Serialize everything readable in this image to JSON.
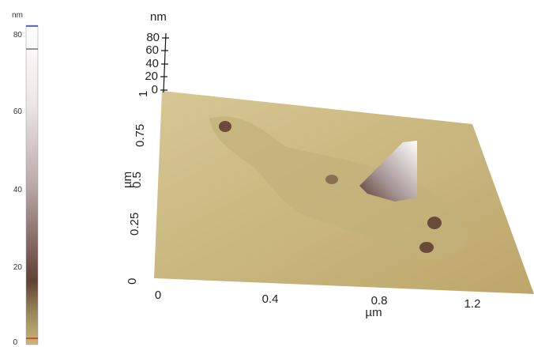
{
  "colorbar": {
    "unit": "nm",
    "ticks": [
      "80",
      "60",
      "40",
      "20",
      "0"
    ]
  },
  "z_axis": {
    "unit": "nm",
    "ticks": [
      "80",
      "60",
      "40",
      "20",
      "0"
    ]
  },
  "y_axis": {
    "unit": "µm",
    "ticks": [
      "1",
      "0.75",
      "0.5",
      "0.25",
      "0"
    ]
  },
  "x_axis": {
    "unit": "µm",
    "ticks": [
      "0",
      "0.4",
      "0.8",
      "1.2"
    ]
  }
}
